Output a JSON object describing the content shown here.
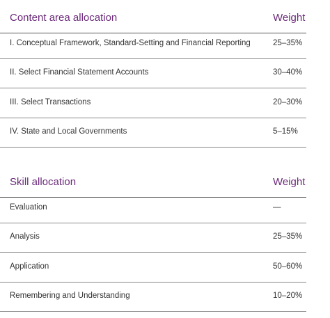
{
  "tables": [
    {
      "header": [
        "Content area allocation",
        "Weight"
      ],
      "rows": [
        [
          "I. Conceptual Framework, Standard-Setting and Financial Reporting",
          "25–35%"
        ],
        [
          "II. Select Financial Statement Accounts",
          "30–40%"
        ],
        [
          "III. Select Transactions",
          "20–30%"
        ],
        [
          "IV. State and Local Governments",
          "5–15%"
        ]
      ]
    },
    {
      "header": [
        "Skill allocation",
        "Weight"
      ],
      "rows": [
        [
          "Evaluation",
          "—"
        ],
        [
          "Analysis",
          "25–35%"
        ],
        [
          "Application",
          "50–60%"
        ],
        [
          "Remembering and Understanding",
          "10–20%"
        ]
      ]
    }
  ]
}
